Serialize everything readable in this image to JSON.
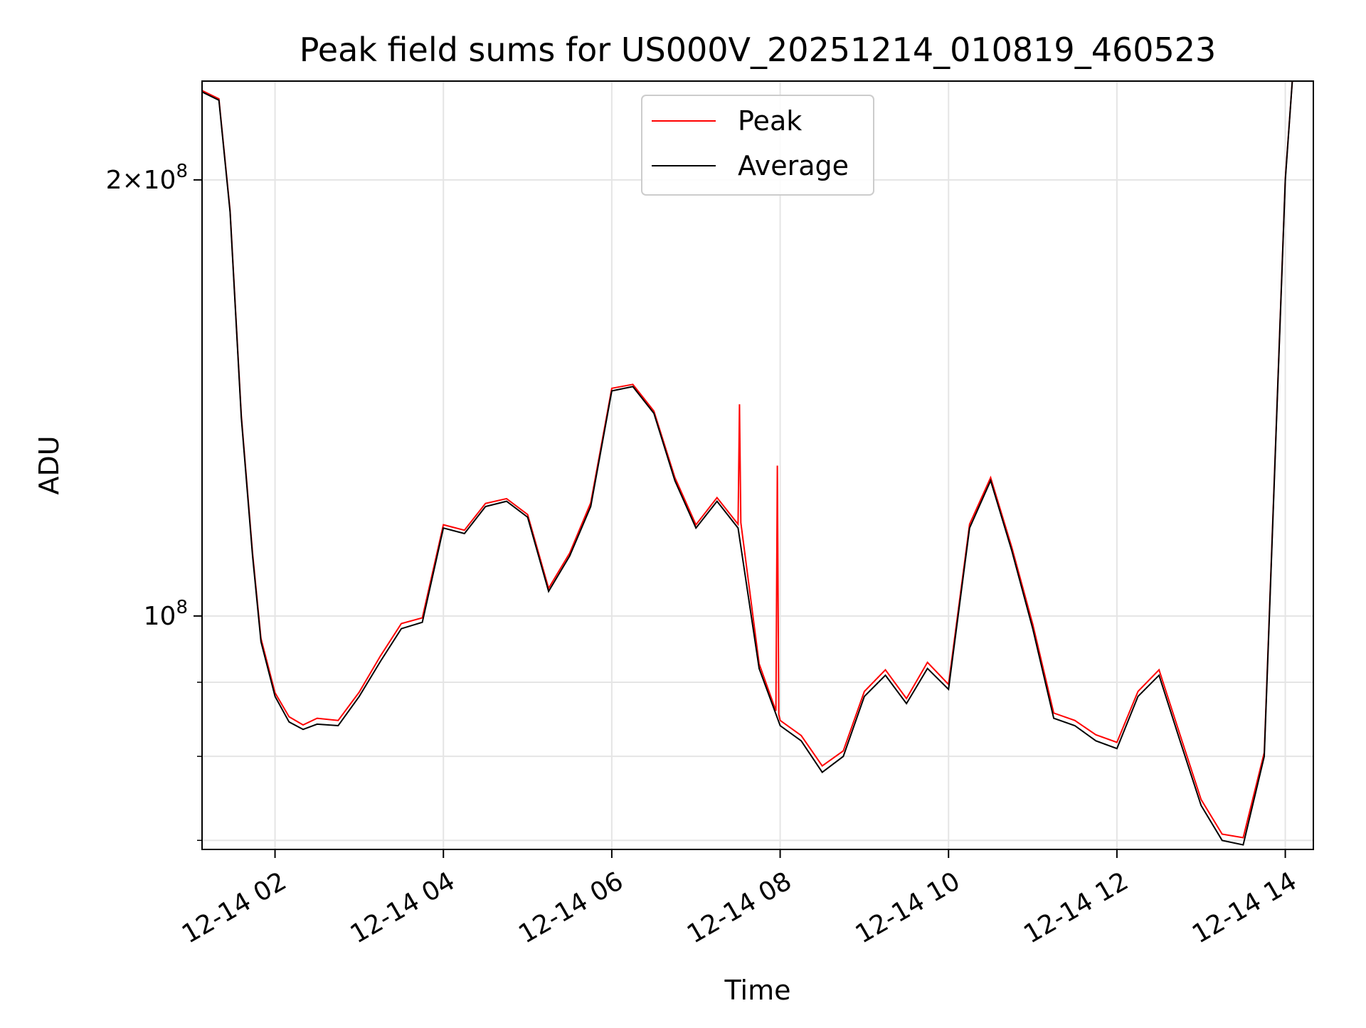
{
  "chart_data": {
    "type": "line",
    "title": "Peak field sums for US000V_20251214_010819_460523",
    "xlabel": "Time",
    "ylabel": "ADU",
    "x_axis": {
      "kind": "time",
      "range": [
        "2025-12-14T01:08",
        "2025-12-14T14:20"
      ],
      "tick_values": [
        "2025-12-14T02:00",
        "2025-12-14T04:00",
        "2025-12-14T06:00",
        "2025-12-14T08:00",
        "2025-12-14T10:00",
        "2025-12-14T12:00",
        "2025-12-14T14:00"
      ],
      "tick_labels": [
        "12-14 02",
        "12-14 04",
        "12-14 06",
        "12-14 08",
        "12-14 10",
        "12-14 12",
        "12-14 14"
      ]
    },
    "y_axis": {
      "scale": "log",
      "range": [
        69000000,
        234000000
      ],
      "major_tick_values": [
        100000000,
        200000000
      ],
      "major_tick_labels": [
        "10^8",
        "2×10^8"
      ],
      "minor_tick_values": [
        70000000,
        80000000,
        90000000
      ]
    },
    "grid": true,
    "legend": {
      "placement": "upper center",
      "entries": [
        "Peak",
        "Average"
      ]
    },
    "series": [
      {
        "name": "Average",
        "color": "#000000",
        "points": [
          [
            "2025-12-14T01:08",
            230000000
          ],
          [
            "2025-12-14T01:20",
            227000000
          ],
          [
            "2025-12-14T01:28",
            190000000
          ],
          [
            "2025-12-14T01:36",
            137000000
          ],
          [
            "2025-12-14T01:44",
            110000000
          ],
          [
            "2025-12-14T01:50",
            96000000
          ],
          [
            "2025-12-14T02:00",
            88000000
          ],
          [
            "2025-12-14T02:10",
            84500000
          ],
          [
            "2025-12-14T02:20",
            83500000
          ],
          [
            "2025-12-14T02:30",
            84200000
          ],
          [
            "2025-12-14T02:45",
            84000000
          ],
          [
            "2025-12-14T03:00",
            88000000
          ],
          [
            "2025-12-14T03:15",
            93000000
          ],
          [
            "2025-12-14T03:30",
            98000000
          ],
          [
            "2025-12-14T03:45",
            99000000
          ],
          [
            "2025-12-14T04:00",
            115000000
          ],
          [
            "2025-12-14T04:15",
            114000000
          ],
          [
            "2025-12-14T04:30",
            119000000
          ],
          [
            "2025-12-14T04:45",
            120000000
          ],
          [
            "2025-12-14T05:00",
            117000000
          ],
          [
            "2025-12-14T05:15",
            104000000
          ],
          [
            "2025-12-14T05:30",
            110000000
          ],
          [
            "2025-12-14T05:45",
            119000000
          ],
          [
            "2025-12-14T06:00",
            143000000
          ],
          [
            "2025-12-14T06:15",
            144000000
          ],
          [
            "2025-12-14T06:30",
            138000000
          ],
          [
            "2025-12-14T06:45",
            124000000
          ],
          [
            "2025-12-14T07:00",
            115000000
          ],
          [
            "2025-12-14T07:15",
            120000000
          ],
          [
            "2025-12-14T07:30",
            115000000
          ],
          [
            "2025-12-14T07:45",
            92000000
          ],
          [
            "2025-12-14T08:00",
            84000000
          ],
          [
            "2025-12-14T08:15",
            82000000
          ],
          [
            "2025-12-14T08:30",
            78000000
          ],
          [
            "2025-12-14T08:45",
            80000000
          ],
          [
            "2025-12-14T09:00",
            88000000
          ],
          [
            "2025-12-14T09:15",
            91000000
          ],
          [
            "2025-12-14T09:30",
            87000000
          ],
          [
            "2025-12-14T09:45",
            92000000
          ],
          [
            "2025-12-14T10:00",
            89000000
          ],
          [
            "2025-12-14T10:15",
            115000000
          ],
          [
            "2025-12-14T10:30",
            124000000
          ],
          [
            "2025-12-14T10:45",
            111000000
          ],
          [
            "2025-12-14T11:00",
            98000000
          ],
          [
            "2025-12-14T11:15",
            85000000
          ],
          [
            "2025-12-14T11:30",
            84000000
          ],
          [
            "2025-12-14T11:45",
            82000000
          ],
          [
            "2025-12-14T12:00",
            81000000
          ],
          [
            "2025-12-14T12:15",
            88000000
          ],
          [
            "2025-12-14T12:30",
            91000000
          ],
          [
            "2025-12-14T12:45",
            82000000
          ],
          [
            "2025-12-14T13:00",
            74000000
          ],
          [
            "2025-12-14T13:15",
            70000000
          ],
          [
            "2025-12-14T13:30",
            69500000
          ],
          [
            "2025-12-14T13:45",
            80000000
          ],
          [
            "2025-12-14T14:00",
            200000000
          ],
          [
            "2025-12-14T14:05",
            234000000
          ]
        ]
      },
      {
        "name": "Peak",
        "color": "#ff0000",
        "points": [
          [
            "2025-12-14T01:08",
            230500000
          ],
          [
            "2025-12-14T01:20",
            227500000
          ],
          [
            "2025-12-14T01:28",
            190500000
          ],
          [
            "2025-12-14T01:36",
            137500000
          ],
          [
            "2025-12-14T01:44",
            110500000
          ],
          [
            "2025-12-14T01:50",
            96500000
          ],
          [
            "2025-12-14T02:00",
            88500000
          ],
          [
            "2025-12-14T02:10",
            85200000
          ],
          [
            "2025-12-14T02:20",
            84100000
          ],
          [
            "2025-12-14T02:30",
            85000000
          ],
          [
            "2025-12-14T02:45",
            84700000
          ],
          [
            "2025-12-14T03:00",
            88600000
          ],
          [
            "2025-12-14T03:15",
            93800000
          ],
          [
            "2025-12-14T03:30",
            98800000
          ],
          [
            "2025-12-14T03:45",
            99700000
          ],
          [
            "2025-12-14T04:00",
            115600000
          ],
          [
            "2025-12-14T04:15",
            114600000
          ],
          [
            "2025-12-14T04:30",
            119600000
          ],
          [
            "2025-12-14T04:45",
            120500000
          ],
          [
            "2025-12-14T05:00",
            117500000
          ],
          [
            "2025-12-14T05:15",
            104500000
          ],
          [
            "2025-12-14T05:30",
            110500000
          ],
          [
            "2025-12-14T05:45",
            119700000
          ],
          [
            "2025-12-14T06:00",
            143600000
          ],
          [
            "2025-12-14T06:15",
            144500000
          ],
          [
            "2025-12-14T06:30",
            138500000
          ],
          [
            "2025-12-14T06:45",
            124600000
          ],
          [
            "2025-12-14T07:00",
            115600000
          ],
          [
            "2025-12-14T07:15",
            120700000
          ],
          [
            "2025-12-14T07:30",
            115700000
          ],
          [
            "2025-12-14T07:31",
            140000000
          ],
          [
            "2025-12-14T07:32",
            116000000
          ],
          [
            "2025-12-14T07:45",
            92700000
          ],
          [
            "2025-12-14T07:57",
            86000000
          ],
          [
            "2025-12-14T07:58",
            127000000
          ],
          [
            "2025-12-14T07:59",
            85500000
          ],
          [
            "2025-12-14T08:00",
            84700000
          ],
          [
            "2025-12-14T08:15",
            82700000
          ],
          [
            "2025-12-14T08:30",
            78800000
          ],
          [
            "2025-12-14T08:45",
            80700000
          ],
          [
            "2025-12-14T09:00",
            88700000
          ],
          [
            "2025-12-14T09:15",
            91800000
          ],
          [
            "2025-12-14T09:30",
            87700000
          ],
          [
            "2025-12-14T09:45",
            92900000
          ],
          [
            "2025-12-14T10:00",
            89700000
          ],
          [
            "2025-12-14T10:15",
            115700000
          ],
          [
            "2025-12-14T10:30",
            124600000
          ],
          [
            "2025-12-14T10:45",
            111600000
          ],
          [
            "2025-12-14T11:00",
            98700000
          ],
          [
            "2025-12-14T11:15",
            85700000
          ],
          [
            "2025-12-14T11:30",
            84700000
          ],
          [
            "2025-12-14T11:45",
            82800000
          ],
          [
            "2025-12-14T12:00",
            81800000
          ],
          [
            "2025-12-14T12:15",
            88700000
          ],
          [
            "2025-12-14T12:30",
            91800000
          ],
          [
            "2025-12-14T12:45",
            82800000
          ],
          [
            "2025-12-14T13:00",
            74700000
          ],
          [
            "2025-12-14T13:15",
            70700000
          ],
          [
            "2025-12-14T13:30",
            70300000
          ],
          [
            "2025-12-14T13:45",
            80500000
          ],
          [
            "2025-12-14T14:00",
            200500000
          ],
          [
            "2025-12-14T14:05",
            234000000
          ]
        ]
      }
    ]
  }
}
